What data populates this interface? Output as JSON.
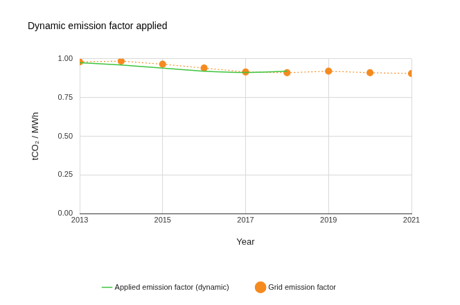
{
  "chart_data": {
    "type": "line",
    "title": "Dynamic emission factor applied",
    "x_label": "Year",
    "y_label": "tCO₂ / MWh",
    "x": [
      2013,
      2014,
      2015,
      2016,
      2017,
      2018,
      2019,
      2020,
      2021
    ],
    "series": [
      {
        "name": "Applied emission factor (dynamic)",
        "color": "#3cc43c",
        "marker": "none",
        "line_style": "solid",
        "values": [
          0.975,
          0.96,
          0.94,
          0.92,
          0.912,
          0.92,
          null,
          null,
          null
        ]
      },
      {
        "name": "Grid emission factor",
        "color": "#f58a1f",
        "marker": "circle",
        "line_style": "dotted",
        "values": [
          0.98,
          0.985,
          0.965,
          0.94,
          0.915,
          0.91,
          0.92,
          0.91,
          0.905
        ]
      }
    ],
    "xlim": [
      2013,
      2021
    ],
    "xticks": [
      2013,
      2015,
      2017,
      2019,
      2021
    ],
    "ylim": [
      0,
      1
    ],
    "yticks": [
      {
        "value": 0,
        "label": "0.00"
      },
      {
        "value": 0.25,
        "label": "0.25"
      },
      {
        "value": 0.5,
        "label": "0.50"
      },
      {
        "value": 0.75,
        "label": "0.75"
      },
      {
        "value": 1,
        "label": "1.00"
      }
    ],
    "grid": true,
    "legend": "bottom"
  }
}
